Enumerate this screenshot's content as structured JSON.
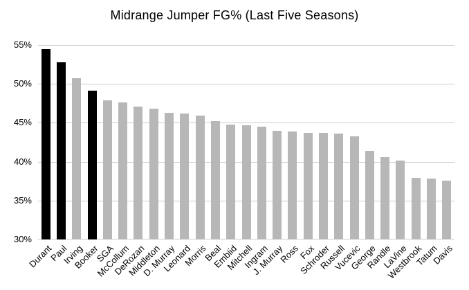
{
  "chart_data": {
    "type": "bar",
    "title": "Midrange Jumper FG% (Last Five Seasons)",
    "categories": [
      "Durant",
      "Paul",
      "Irving",
      "Booker",
      "SGA",
      "McCollum",
      "DeRozan",
      "Middleton",
      "D. Murray",
      "Leonard",
      "Morris",
      "Beal",
      "Embiid",
      "Mitchell",
      "Ingram",
      "J. Murray",
      "Ross",
      "Fox",
      "Schroder",
      "Russell",
      "Vucevic",
      "George",
      "Randle",
      "LaVine",
      "Westbrook",
      "Tatum",
      "Davis"
    ],
    "values": [
      54.5,
      52.8,
      50.7,
      49.1,
      47.9,
      47.6,
      47.1,
      46.8,
      46.3,
      46.2,
      45.9,
      45.2,
      44.8,
      44.7,
      44.5,
      44.0,
      43.9,
      43.7,
      43.7,
      43.6,
      43.3,
      41.4,
      40.6,
      40.1,
      37.9,
      37.8,
      37.6
    ],
    "unit": "%",
    "highlighted_categories": [
      "Durant",
      "Paul",
      "Booker"
    ],
    "xlabel": "",
    "ylabel": "",
    "ylim": [
      30,
      55
    ],
    "y_ticks": [
      {
        "value": 30,
        "label": "30%"
      },
      {
        "value": 35,
        "label": "35%"
      },
      {
        "value": 40,
        "label": "40%"
      },
      {
        "value": 45,
        "label": "45%"
      },
      {
        "value": 50,
        "label": "50%"
      },
      {
        "value": 55,
        "label": "55%"
      }
    ],
    "grid": true,
    "legend": "none",
    "colors": {
      "bar_default": "#b7b7b7",
      "bar_highlight": "#000000",
      "gridline": "#cccccc",
      "text": "#000000",
      "background": "#ffffff"
    }
  }
}
